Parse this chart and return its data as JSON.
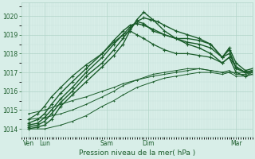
{
  "title": "Pression niveau de la mer( hPa )",
  "bg_color": "#d8eee8",
  "grid_major_color": "#b0d4c8",
  "grid_minor_color": "#c8e4dc",
  "line_color": "#1a5c2a",
  "yticks": [
    1014,
    1015,
    1016,
    1017,
    1018,
    1019,
    1020
  ],
  "ylim": [
    1013.6,
    1020.7
  ],
  "xlim": [
    0.0,
    1.0
  ],
  "xtick_labels": [
    "Ven",
    "Lun",
    "Sam",
    "Dim",
    "Mar"
  ],
  "xtick_positions": [
    0.03,
    0.1,
    0.37,
    0.55,
    0.93
  ],
  "lines": [
    {
      "x": [
        0.03,
        0.07,
        0.1,
        0.13,
        0.17,
        0.22,
        0.28,
        0.35,
        0.4,
        0.44,
        0.47,
        0.5,
        0.53,
        0.57,
        0.62,
        0.67,
        0.72,
        0.77,
        0.82,
        0.87,
        0.9,
        0.93,
        0.97,
        1.0
      ],
      "y": [
        1014.0,
        1014.1,
        1014.2,
        1014.5,
        1015.2,
        1015.8,
        1016.5,
        1017.3,
        1017.9,
        1018.5,
        1019.2,
        1019.8,
        1020.2,
        1019.8,
        1019.2,
        1018.8,
        1018.5,
        1018.3,
        1018.0,
        1017.5,
        1017.8,
        1017.0,
        1016.8,
        1016.9
      ],
      "style": "-",
      "marker": "+",
      "ms": 2.5,
      "lw": 1.0,
      "mew": 0.8
    },
    {
      "x": [
        0.03,
        0.07,
        0.1,
        0.13,
        0.17,
        0.22,
        0.28,
        0.35,
        0.4,
        0.44,
        0.47,
        0.5,
        0.53,
        0.57,
        0.62,
        0.67,
        0.72,
        0.77,
        0.82,
        0.87,
        0.9,
        0.93,
        0.97,
        1.0
      ],
      "y": [
        1014.1,
        1014.2,
        1014.4,
        1014.8,
        1015.4,
        1016.0,
        1016.8,
        1017.5,
        1018.2,
        1018.8,
        1019.3,
        1019.7,
        1019.6,
        1019.2,
        1019.0,
        1018.8,
        1018.8,
        1018.7,
        1018.5,
        1017.8,
        1018.2,
        1017.2,
        1017.0,
        1017.1
      ],
      "style": "-",
      "marker": "+",
      "ms": 2.5,
      "lw": 1.0,
      "mew": 0.8
    },
    {
      "x": [
        0.03,
        0.07,
        0.1,
        0.13,
        0.17,
        0.22,
        0.28,
        0.35,
        0.4,
        0.44,
        0.47,
        0.5,
        0.53,
        0.56,
        0.59,
        0.62,
        0.67,
        0.72,
        0.77,
        0.82,
        0.87,
        0.9,
        0.93,
        0.97,
        1.0
      ],
      "y": [
        1014.2,
        1014.3,
        1014.6,
        1015.0,
        1015.6,
        1016.2,
        1017.0,
        1017.8,
        1018.5,
        1019.0,
        1019.4,
        1019.7,
        1019.9,
        1019.8,
        1019.7,
        1019.5,
        1019.2,
        1019.0,
        1018.8,
        1018.5,
        1017.8,
        1018.0,
        1017.3,
        1017.0,
        1017.1
      ],
      "style": "-",
      "marker": "+",
      "ms": 2.5,
      "lw": 1.0,
      "mew": 0.8
    },
    {
      "x": [
        0.03,
        0.07,
        0.1,
        0.13,
        0.17,
        0.22,
        0.28,
        0.35,
        0.4,
        0.44,
        0.47,
        0.5,
        0.53,
        0.57,
        0.62,
        0.67,
        0.72,
        0.77,
        0.82,
        0.87,
        0.9,
        0.93,
        0.97,
        1.0
      ],
      "y": [
        1014.3,
        1014.5,
        1014.8,
        1015.3,
        1015.9,
        1016.5,
        1017.2,
        1018.0,
        1018.7,
        1019.2,
        1019.5,
        1019.6,
        1019.5,
        1019.3,
        1019.0,
        1018.8,
        1018.6,
        1018.5,
        1018.3,
        1017.8,
        1018.3,
        1017.5,
        1017.1,
        1017.2
      ],
      "style": "-",
      "marker": "+",
      "ms": 2.5,
      "lw": 1.0,
      "mew": 0.8
    },
    {
      "x": [
        0.03,
        0.07,
        0.1,
        0.13,
        0.17,
        0.22,
        0.28,
        0.35,
        0.4,
        0.44,
        0.47,
        0.5,
        0.53,
        0.57,
        0.62,
        0.67,
        0.72,
        0.77,
        0.82,
        0.87,
        0.9,
        0.93,
        0.97,
        1.0
      ],
      "y": [
        1014.5,
        1014.8,
        1015.2,
        1015.7,
        1016.2,
        1016.8,
        1017.4,
        1018.0,
        1018.6,
        1019.0,
        1019.2,
        1019.0,
        1018.8,
        1018.5,
        1018.2,
        1018.0,
        1018.0,
        1017.9,
        1017.8,
        1017.5,
        1017.8,
        1017.3,
        1017.0,
        1017.0
      ],
      "style": "-",
      "marker": "+",
      "ms": 2.5,
      "lw": 0.9,
      "mew": 0.8
    },
    {
      "x": [
        0.03,
        0.1,
        0.17,
        0.22,
        0.28,
        0.35,
        0.4,
        0.44,
        0.5,
        0.57,
        0.62,
        0.67,
        0.72,
        0.77,
        0.82,
        0.87,
        0.9,
        0.93,
        0.97,
        1.0
      ],
      "y": [
        1014.0,
        1014.0,
        1014.2,
        1014.4,
        1014.7,
        1015.2,
        1015.5,
        1015.8,
        1016.2,
        1016.5,
        1016.7,
        1016.8,
        1016.9,
        1017.0,
        1017.0,
        1016.9,
        1017.0,
        1016.8,
        1016.8,
        1017.0
      ],
      "style": "-",
      "marker": "+",
      "ms": 2.0,
      "lw": 0.7,
      "mew": 0.7
    },
    {
      "x": [
        0.03,
        0.1,
        0.17,
        0.22,
        0.28,
        0.35,
        0.4,
        0.44,
        0.5,
        0.57,
        0.62,
        0.67,
        0.72,
        0.77,
        0.82,
        0.87,
        0.9,
        0.93,
        0.97,
        1.0
      ],
      "y": [
        1014.5,
        1014.6,
        1014.8,
        1015.0,
        1015.3,
        1015.7,
        1016.0,
        1016.3,
        1016.6,
        1016.9,
        1017.0,
        1017.1,
        1017.2,
        1017.2,
        1017.1,
        1017.0,
        1017.1,
        1016.9,
        1016.9,
        1017.0
      ],
      "style": "-",
      "marker": "+",
      "ms": 2.0,
      "lw": 0.7,
      "mew": 0.7
    },
    {
      "x": [
        0.03,
        0.1,
        0.17,
        0.22,
        0.28,
        0.35,
        0.4,
        0.44,
        0.5,
        0.57,
        0.62,
        0.67,
        0.72,
        0.77,
        0.82,
        0.87,
        0.93,
        1.0
      ],
      "y": [
        1014.8,
        1015.0,
        1015.3,
        1015.5,
        1015.7,
        1016.0,
        1016.2,
        1016.4,
        1016.6,
        1016.8,
        1016.9,
        1017.0,
        1017.1,
        1017.2,
        1017.1,
        1017.0,
        1017.0,
        1017.0
      ],
      "style": "-",
      "marker": "+",
      "ms": 2.0,
      "lw": 0.7,
      "mew": 0.7
    }
  ]
}
